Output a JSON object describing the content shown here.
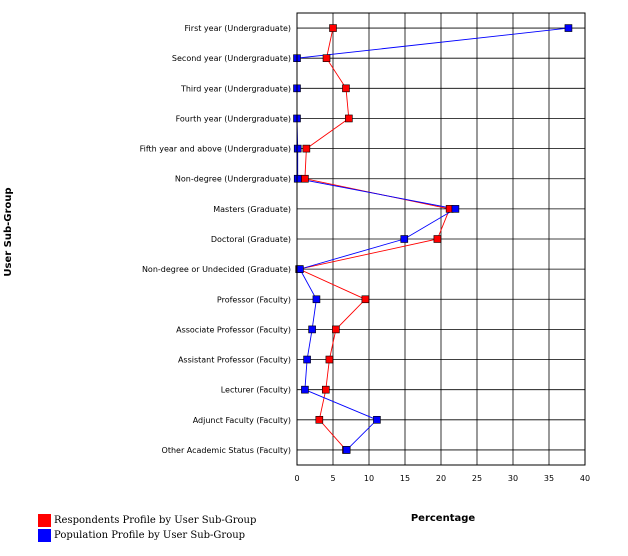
{
  "chart_data": {
    "type": "line",
    "xlabel": "Percentage",
    "ylabel": "User Sub-Group",
    "xlim": [
      0,
      40
    ],
    "xticks": [
      0,
      5,
      10,
      15,
      20,
      25,
      30,
      35,
      40
    ],
    "grid": true,
    "legend_position": "bottom-left",
    "categories": [
      "First year (Undergraduate)",
      "Second year (Undergraduate)",
      "Third year (Undergraduate)",
      "Fourth year (Undergraduate)",
      "Fifth year and above (Undergraduate)",
      "Non-degree (Undergraduate)",
      "Masters (Graduate)",
      "Doctoral (Graduate)",
      "Non-degree or Undecided (Graduate)",
      "Professor (Faculty)",
      "Associate Professor (Faculty)",
      "Assistant Professor (Faculty)",
      "Lecturer (Faculty)",
      "Adjunct Faculty (Faculty)",
      "Other Academic Status (Faculty)"
    ],
    "series": [
      {
        "name": "Respondents Profile by User Sub-Group",
        "color": "#ff0000",
        "values": [
          5.0,
          4.1,
          6.8,
          7.2,
          1.3,
          1.1,
          21.2,
          19.5,
          0.3,
          9.5,
          5.4,
          4.5,
          4.0,
          3.1,
          6.8
        ]
      },
      {
        "name": "Population Profile by User Sub-Group",
        "color": "#0000ff",
        "values": [
          37.7,
          0.0,
          0.0,
          0.0,
          0.1,
          0.1,
          22.0,
          14.9,
          0.4,
          2.7,
          2.1,
          1.4,
          1.1,
          11.1,
          6.9
        ]
      }
    ]
  }
}
